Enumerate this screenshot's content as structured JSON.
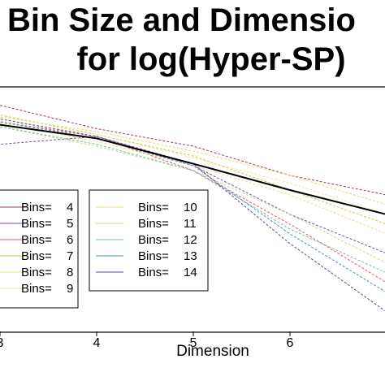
{
  "chart_data": {
    "type": "line",
    "title_line1": "Bin Size and Dimensio",
    "title_line2": "for log(Hyper-SP)",
    "xlabel": "Dimension",
    "ylabel": "",
    "x": [
      2,
      3,
      4,
      5,
      6,
      7
    ],
    "xticks": [
      "3",
      "4",
      "5",
      "6"
    ],
    "xlim": [
      2,
      7
    ],
    "grid": false,
    "legend_placement": "bottom-left",
    "legend_label_prefix": "Bins=",
    "series": [
      {
        "name": "4",
        "color": "#9e3b63",
        "values": [
          0.0,
          0.012,
          -0.012,
          -0.03,
          -0.06,
          -0.08
        ]
      },
      {
        "name": "5",
        "color": "#7c4e8d",
        "values": [
          0.0,
          -0.028,
          -0.02,
          -0.05,
          -0.1,
          -0.14
        ]
      },
      {
        "name": "6",
        "color": "#d95a6a",
        "values": [
          0.0,
          -0.005,
          -0.02,
          -0.055,
          -0.11,
          -0.17
        ]
      },
      {
        "name": "7",
        "color": "#c9c94a",
        "values": [
          0.0,
          0.002,
          -0.018,
          -0.04,
          -0.075,
          -0.11
        ]
      },
      {
        "name": "8",
        "color": "#e0e070",
        "values": [
          0.0,
          0.0,
          -0.015,
          -0.035,
          -0.06,
          -0.09
        ]
      },
      {
        "name": "9",
        "color": "#f2e5a0",
        "values": [
          0.0,
          -0.004,
          -0.018,
          -0.042,
          -0.068,
          -0.1
        ]
      },
      {
        "name": "10",
        "color": "#eedd88",
        "values": [
          0.0,
          -0.006,
          -0.025,
          -0.05,
          -0.08,
          -0.12
        ]
      },
      {
        "name": "11",
        "color": "#c8d98c",
        "values": [
          0.0,
          -0.01,
          -0.03,
          -0.055,
          -0.1,
          -0.15
        ]
      },
      {
        "name": "12",
        "color": "#7bbfa0",
        "values": [
          0.0,
          -0.01,
          -0.028,
          -0.055,
          -0.115,
          -0.16
        ]
      },
      {
        "name": "13",
        "color": "#4e8fb0",
        "values": [
          0.0,
          -0.005,
          -0.022,
          -0.05,
          -0.12,
          -0.18
        ]
      },
      {
        "name": "14",
        "color": "#5a4a9a",
        "values": [
          0.0,
          -0.002,
          -0.02,
          -0.048,
          -0.13,
          -0.2
        ]
      },
      {
        "name": "",
        "color": "#000000",
        "mean": true,
        "values": [
          0.0,
          -0.008,
          -0.022,
          -0.048,
          -0.075,
          -0.1
        ]
      }
    ],
    "ylim": [
      -0.22,
      0.03
    ]
  }
}
